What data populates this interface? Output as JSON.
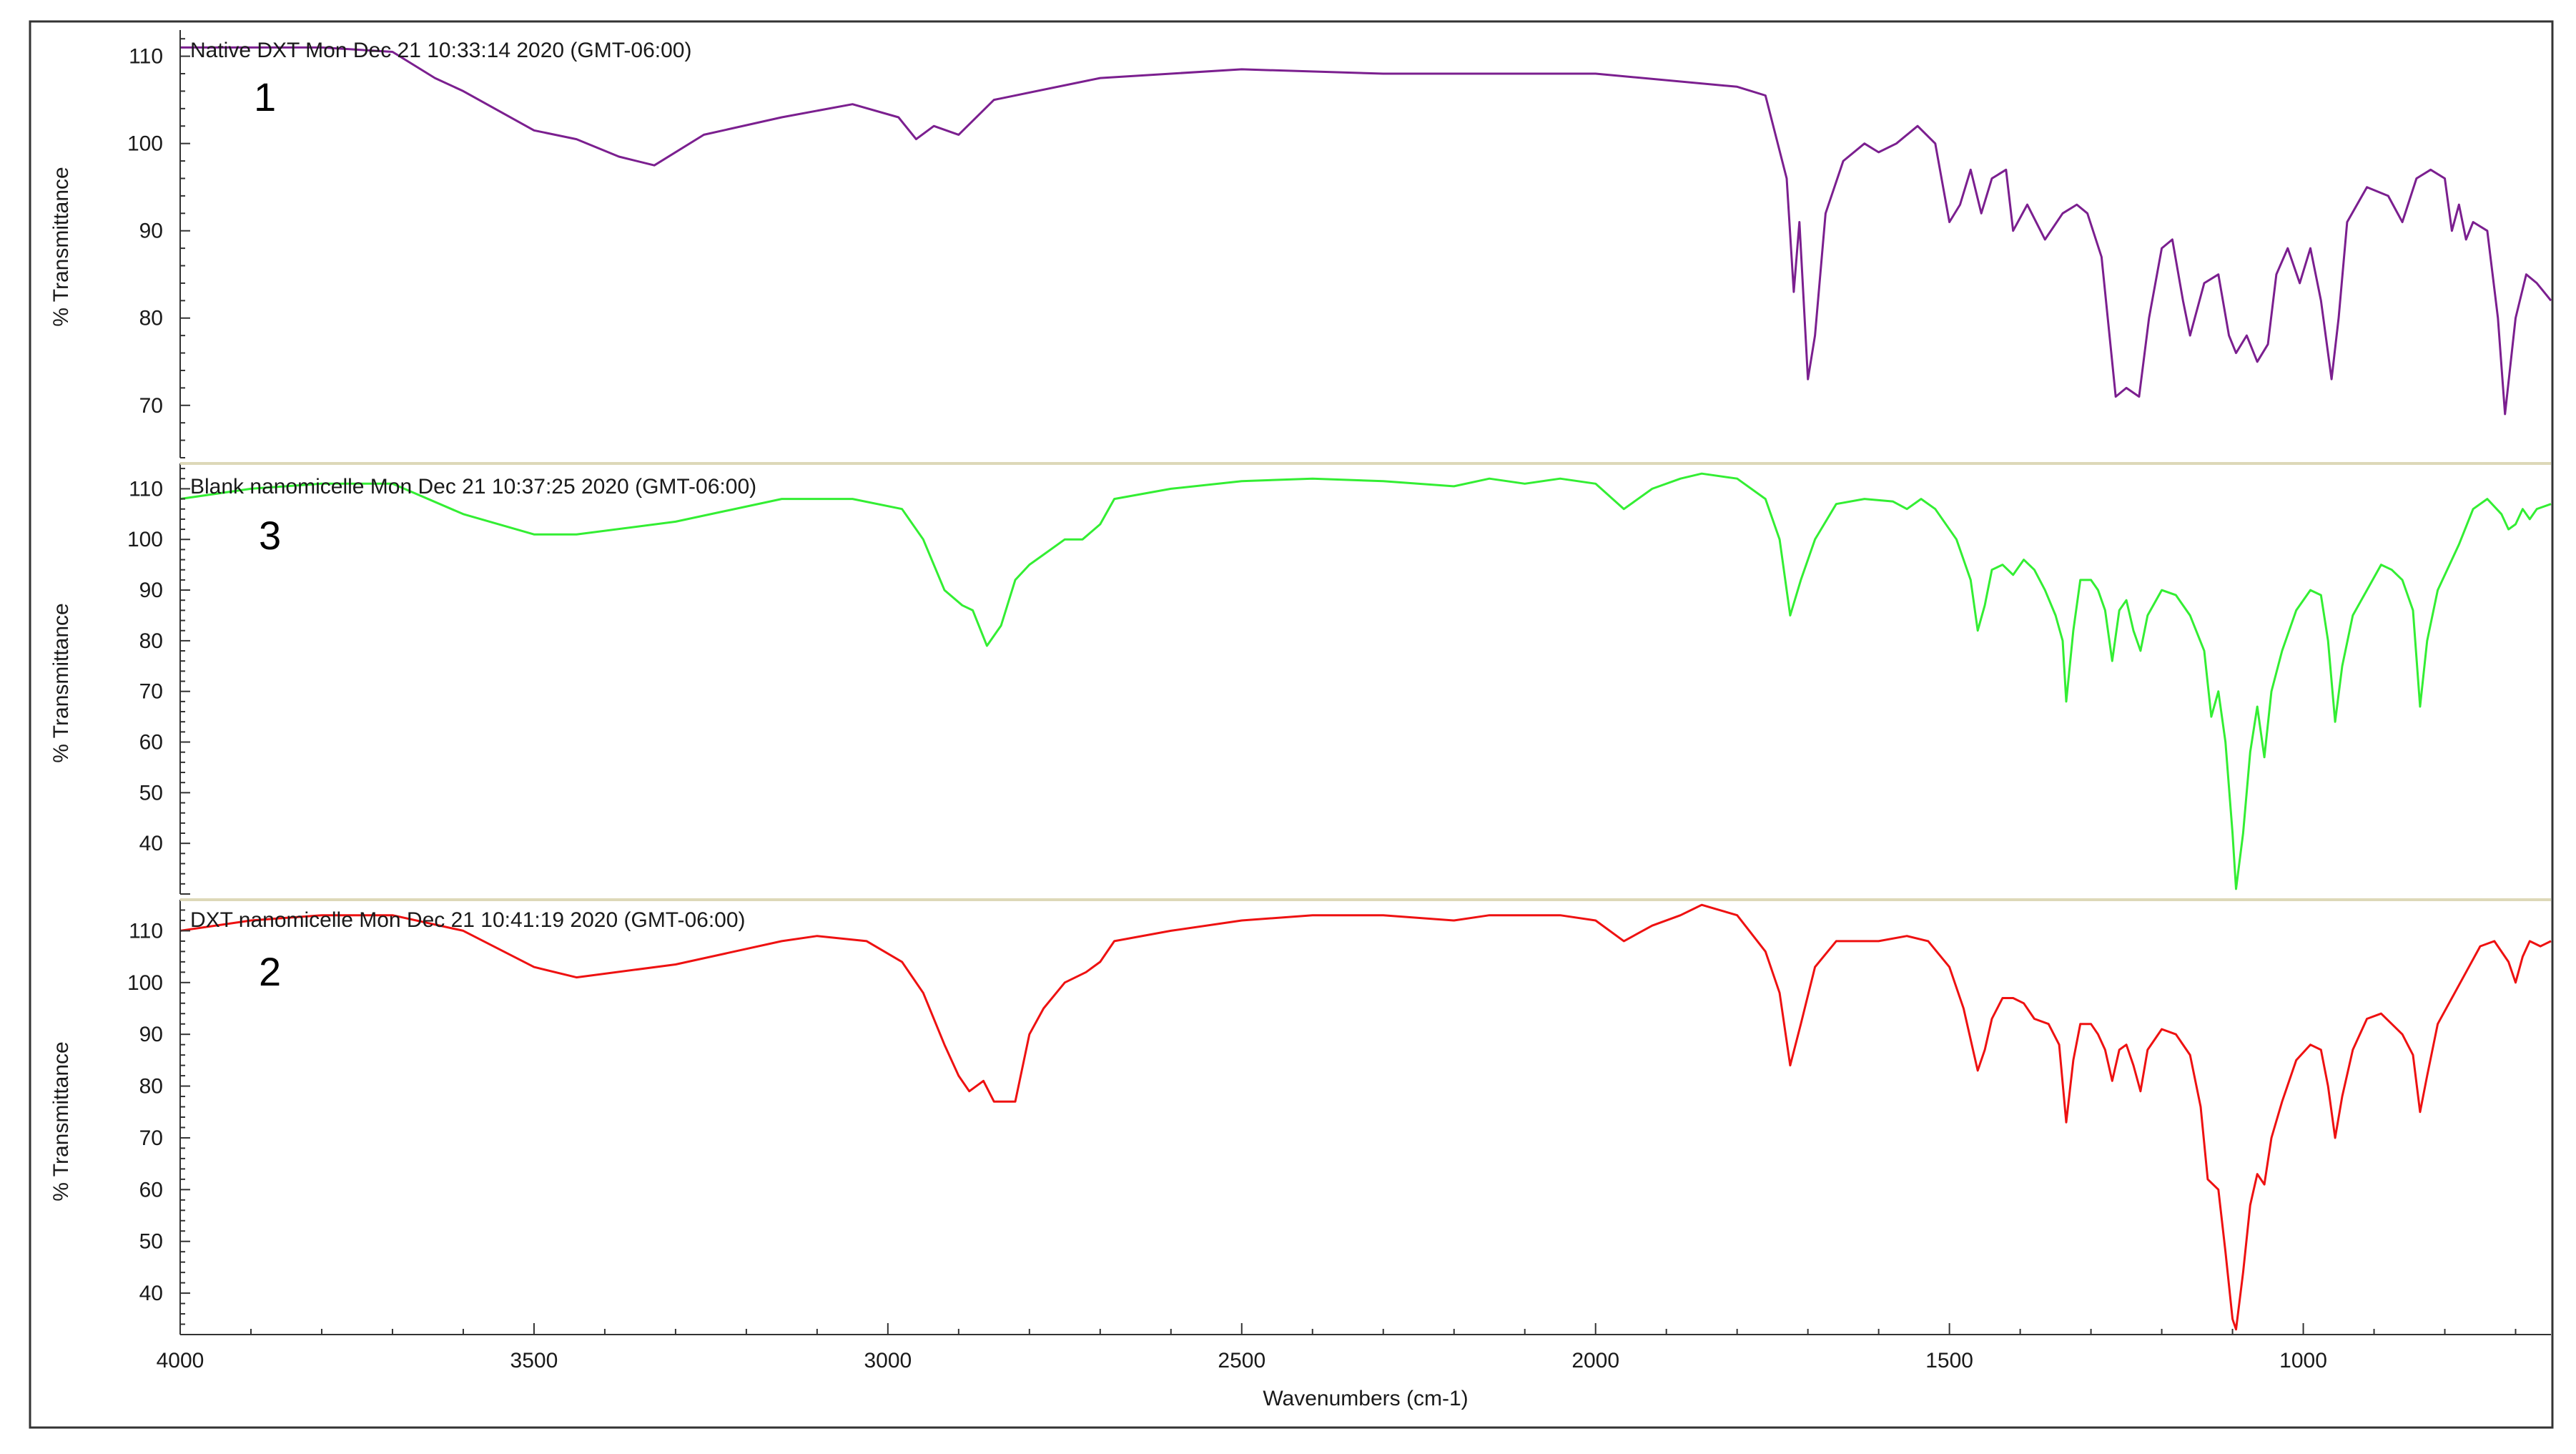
{
  "chart_data": {
    "type": "line",
    "xlabel": "Wavenumbers (cm-1)",
    "x_ticks": [
      4000,
      3500,
      3000,
      2500,
      2000,
      1500,
      1000
    ],
    "xlim": [
      4000,
      650
    ],
    "x_reversed": true,
    "grid": false,
    "panels": [
      {
        "title": "Native DXT Mon Dec 21 10:33:14 2020 (GMT-06:00)",
        "badge": "1",
        "ylabel": "% Transmittance",
        "ylim": [
          64,
          113
        ],
        "y_ticks": [
          70,
          80,
          90,
          100,
          110
        ],
        "color": "#7b1f8f",
        "points": [
          [
            4000,
            111
          ],
          [
            3800,
            111
          ],
          [
            3700,
            110.5
          ],
          [
            3640,
            107.5
          ],
          [
            3600,
            106
          ],
          [
            3500,
            101.5
          ],
          [
            3440,
            100.5
          ],
          [
            3380,
            98.5
          ],
          [
            3330,
            97.5
          ],
          [
            3260,
            101
          ],
          [
            3150,
            103
          ],
          [
            3050,
            104.5
          ],
          [
            2985,
            103
          ],
          [
            2960,
            100.5
          ],
          [
            2935,
            102
          ],
          [
            2900,
            101
          ],
          [
            2850,
            105
          ],
          [
            2700,
            107.5
          ],
          [
            2500,
            108.5
          ],
          [
            2300,
            108
          ],
          [
            2100,
            108
          ],
          [
            2000,
            108
          ],
          [
            1800,
            106.5
          ],
          [
            1760,
            105.5
          ],
          [
            1730,
            96
          ],
          [
            1720,
            83
          ],
          [
            1712,
            91
          ],
          [
            1700,
            73
          ],
          [
            1690,
            78
          ],
          [
            1675,
            92
          ],
          [
            1650,
            98
          ],
          [
            1620,
            100
          ],
          [
            1600,
            99
          ],
          [
            1575,
            100
          ],
          [
            1545,
            102
          ],
          [
            1520,
            100
          ],
          [
            1500,
            91
          ],
          [
            1485,
            93
          ],
          [
            1470,
            97
          ],
          [
            1455,
            92
          ],
          [
            1440,
            96
          ],
          [
            1420,
            97
          ],
          [
            1410,
            90
          ],
          [
            1390,
            93
          ],
          [
            1365,
            89
          ],
          [
            1340,
            92
          ],
          [
            1320,
            93
          ],
          [
            1305,
            92
          ],
          [
            1285,
            87
          ],
          [
            1265,
            71
          ],
          [
            1250,
            72
          ],
          [
            1232,
            71
          ],
          [
            1218,
            80
          ],
          [
            1200,
            88
          ],
          [
            1185,
            89
          ],
          [
            1170,
            82
          ],
          [
            1160,
            78
          ],
          [
            1140,
            84
          ],
          [
            1120,
            85
          ],
          [
            1105,
            78
          ],
          [
            1095,
            76
          ],
          [
            1080,
            78
          ],
          [
            1065,
            75
          ],
          [
            1050,
            77
          ],
          [
            1038,
            85
          ],
          [
            1022,
            88
          ],
          [
            1005,
            84
          ],
          [
            990,
            88
          ],
          [
            975,
            82
          ],
          [
            960,
            73
          ],
          [
            950,
            80
          ],
          [
            938,
            91
          ],
          [
            910,
            95
          ],
          [
            880,
            94
          ],
          [
            860,
            91
          ],
          [
            840,
            96
          ],
          [
            820,
            97
          ],
          [
            800,
            96
          ],
          [
            790,
            90
          ],
          [
            780,
            93
          ],
          [
            770,
            89
          ],
          [
            760,
            91
          ],
          [
            740,
            90
          ],
          [
            725,
            80
          ],
          [
            715,
            69
          ],
          [
            700,
            80
          ],
          [
            685,
            85
          ],
          [
            670,
            84
          ],
          [
            650,
            82
          ]
        ]
      },
      {
        "title": "Blank nanomicelle Mon Dec 21 10:37:25 2020 (GMT-06:00)",
        "badge": "3",
        "ylabel": "% Transmittance",
        "ylim": [
          30,
          115
        ],
        "y_ticks": [
          40,
          50,
          60,
          70,
          80,
          90,
          100,
          110
        ],
        "color": "#33ee33",
        "points": [
          [
            4000,
            108
          ],
          [
            3900,
            110
          ],
          [
            3800,
            111
          ],
          [
            3700,
            111
          ],
          [
            3600,
            105
          ],
          [
            3500,
            101
          ],
          [
            3440,
            101
          ],
          [
            3300,
            103.5
          ],
          [
            3150,
            108
          ],
          [
            3050,
            108
          ],
          [
            2980,
            106
          ],
          [
            2950,
            100
          ],
          [
            2920,
            90
          ],
          [
            2895,
            87
          ],
          [
            2880,
            86
          ],
          [
            2860,
            79
          ],
          [
            2840,
            83
          ],
          [
            2820,
            92
          ],
          [
            2800,
            95
          ],
          [
            2780,
            97
          ],
          [
            2750,
            100
          ],
          [
            2725,
            100
          ],
          [
            2700,
            103
          ],
          [
            2680,
            108
          ],
          [
            2600,
            110
          ],
          [
            2500,
            111.5
          ],
          [
            2400,
            112
          ],
          [
            2300,
            111.5
          ],
          [
            2200,
            110.5
          ],
          [
            2150,
            112
          ],
          [
            2100,
            111
          ],
          [
            2050,
            112
          ],
          [
            2000,
            111
          ],
          [
            1960,
            106
          ],
          [
            1920,
            110
          ],
          [
            1880,
            112
          ],
          [
            1850,
            113
          ],
          [
            1800,
            112
          ],
          [
            1760,
            108
          ],
          [
            1740,
            100
          ],
          [
            1725,
            85
          ],
          [
            1710,
            92
          ],
          [
            1690,
            100
          ],
          [
            1660,
            107
          ],
          [
            1620,
            108
          ],
          [
            1580,
            107.5
          ],
          [
            1560,
            106
          ],
          [
            1540,
            108
          ],
          [
            1520,
            106
          ],
          [
            1490,
            100
          ],
          [
            1470,
            92
          ],
          [
            1460,
            82
          ],
          [
            1450,
            87
          ],
          [
            1440,
            94
          ],
          [
            1425,
            95
          ],
          [
            1410,
            93
          ],
          [
            1395,
            96
          ],
          [
            1380,
            94
          ],
          [
            1365,
            90
          ],
          [
            1350,
            85
          ],
          [
            1340,
            80
          ],
          [
            1335,
            68
          ],
          [
            1325,
            82
          ],
          [
            1315,
            92
          ],
          [
            1300,
            92
          ],
          [
            1290,
            90
          ],
          [
            1280,
            86
          ],
          [
            1270,
            76
          ],
          [
            1260,
            86
          ],
          [
            1250,
            88
          ],
          [
            1240,
            82
          ],
          [
            1230,
            78
          ],
          [
            1220,
            85
          ],
          [
            1200,
            90
          ],
          [
            1180,
            89
          ],
          [
            1160,
            85
          ],
          [
            1140,
            78
          ],
          [
            1130,
            65
          ],
          [
            1120,
            70
          ],
          [
            1110,
            60
          ],
          [
            1100,
            42
          ],
          [
            1095,
            31
          ],
          [
            1085,
            42
          ],
          [
            1075,
            58
          ],
          [
            1065,
            67
          ],
          [
            1055,
            57
          ],
          [
            1045,
            70
          ],
          [
            1030,
            78
          ],
          [
            1010,
            86
          ],
          [
            990,
            90
          ],
          [
            975,
            89
          ],
          [
            965,
            80
          ],
          [
            955,
            64
          ],
          [
            945,
            75
          ],
          [
            930,
            85
          ],
          [
            910,
            90
          ],
          [
            890,
            95
          ],
          [
            875,
            94
          ],
          [
            860,
            92
          ],
          [
            845,
            86
          ],
          [
            835,
            67
          ],
          [
            825,
            80
          ],
          [
            810,
            90
          ],
          [
            780,
            99
          ],
          [
            760,
            106
          ],
          [
            740,
            108
          ],
          [
            720,
            105
          ],
          [
            710,
            102
          ],
          [
            700,
            103
          ],
          [
            690,
            106
          ],
          [
            680,
            104
          ],
          [
            670,
            106
          ],
          [
            650,
            107
          ]
        ]
      },
      {
        "title": "DXT nanomicelle Mon Dec 21 10:41:19 2020 (GMT-06:00)",
        "badge": "2",
        "ylabel": "% Transmittance",
        "ylim": [
          32,
          116
        ],
        "y_ticks": [
          40,
          50,
          60,
          70,
          80,
          90,
          100,
          110
        ],
        "color": "#ee1111",
        "points": [
          [
            4000,
            110
          ],
          [
            3900,
            112
          ],
          [
            3800,
            113
          ],
          [
            3700,
            113
          ],
          [
            3600,
            110
          ],
          [
            3500,
            103
          ],
          [
            3440,
            101
          ],
          [
            3300,
            103.5
          ],
          [
            3150,
            108
          ],
          [
            3100,
            109
          ],
          [
            3030,
            108
          ],
          [
            2980,
            104
          ],
          [
            2950,
            98
          ],
          [
            2920,
            88
          ],
          [
            2900,
            82
          ],
          [
            2885,
            79
          ],
          [
            2865,
            81
          ],
          [
            2850,
            77
          ],
          [
            2820,
            77
          ],
          [
            2800,
            90
          ],
          [
            2780,
            95
          ],
          [
            2750,
            100
          ],
          [
            2720,
            102
          ],
          [
            2700,
            104
          ],
          [
            2680,
            108
          ],
          [
            2600,
            110
          ],
          [
            2500,
            112
          ],
          [
            2400,
            113
          ],
          [
            2300,
            113
          ],
          [
            2200,
            112
          ],
          [
            2150,
            113
          ],
          [
            2100,
            113
          ],
          [
            2050,
            113
          ],
          [
            2000,
            112
          ],
          [
            1960,
            108
          ],
          [
            1920,
            111
          ],
          [
            1880,
            113
          ],
          [
            1850,
            115
          ],
          [
            1800,
            113
          ],
          [
            1760,
            106
          ],
          [
            1740,
            98
          ],
          [
            1725,
            84
          ],
          [
            1710,
            92
          ],
          [
            1690,
            103
          ],
          [
            1660,
            108
          ],
          [
            1600,
            108
          ],
          [
            1560,
            109
          ],
          [
            1530,
            108
          ],
          [
            1500,
            103
          ],
          [
            1480,
            95
          ],
          [
            1460,
            83
          ],
          [
            1450,
            87
          ],
          [
            1440,
            93
          ],
          [
            1425,
            97
          ],
          [
            1410,
            97
          ],
          [
            1395,
            96
          ],
          [
            1380,
            93
          ],
          [
            1360,
            92
          ],
          [
            1345,
            88
          ],
          [
            1335,
            73
          ],
          [
            1325,
            85
          ],
          [
            1315,
            92
          ],
          [
            1300,
            92
          ],
          [
            1290,
            90
          ],
          [
            1280,
            87
          ],
          [
            1270,
            81
          ],
          [
            1260,
            87
          ],
          [
            1250,
            88
          ],
          [
            1240,
            84
          ],
          [
            1230,
            79
          ],
          [
            1220,
            87
          ],
          [
            1200,
            91
          ],
          [
            1180,
            90
          ],
          [
            1160,
            86
          ],
          [
            1145,
            76
          ],
          [
            1135,
            62
          ],
          [
            1120,
            60
          ],
          [
            1110,
            48
          ],
          [
            1100,
            35
          ],
          [
            1095,
            33
          ],
          [
            1085,
            44
          ],
          [
            1075,
            57
          ],
          [
            1065,
            63
          ],
          [
            1055,
            61
          ],
          [
            1045,
            70
          ],
          [
            1030,
            77
          ],
          [
            1010,
            85
          ],
          [
            990,
            88
          ],
          [
            975,
            87
          ],
          [
            965,
            80
          ],
          [
            955,
            70
          ],
          [
            945,
            78
          ],
          [
            930,
            87
          ],
          [
            910,
            93
          ],
          [
            890,
            94
          ],
          [
            875,
            92
          ],
          [
            860,
            90
          ],
          [
            845,
            86
          ],
          [
            835,
            75
          ],
          [
            825,
            82
          ],
          [
            810,
            92
          ],
          [
            790,
            97
          ],
          [
            770,
            102
          ],
          [
            750,
            107
          ],
          [
            730,
            108
          ],
          [
            710,
            104
          ],
          [
            700,
            100
          ],
          [
            690,
            105
          ],
          [
            680,
            108
          ],
          [
            665,
            107
          ],
          [
            650,
            108
          ]
        ]
      }
    ]
  }
}
